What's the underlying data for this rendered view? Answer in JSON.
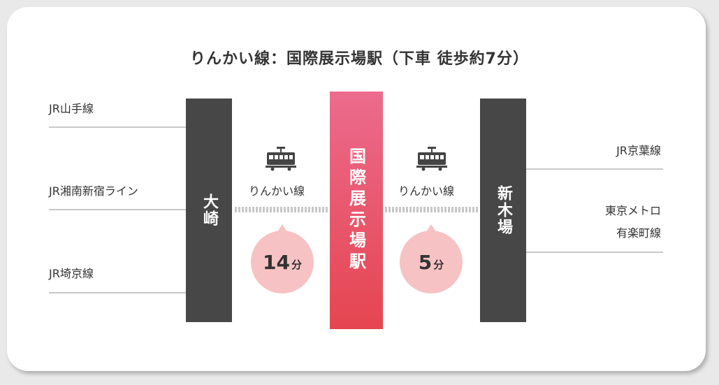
{
  "title": "りんかい線：国際展示場駅（下車 徒歩約7分）",
  "left_lines": [
    "JR山手線",
    "JR湘南新宿ライン",
    "JR埼京線"
  ],
  "right_lines": [
    "JR京葉線",
    "東京メトロ",
    "有楽町線"
  ],
  "stations": {
    "osaki": "大崎",
    "kokusai": "国際展示場駅",
    "shinkiba": "新木場"
  },
  "segments": [
    {
      "line": "りんかい線",
      "minutes": "14",
      "unit": "分"
    },
    {
      "line": "りんかい線",
      "minutes": "5",
      "unit": "分"
    }
  ],
  "colors": {
    "station_dark": "#474747",
    "center_top": "#ec6b8d",
    "center_bottom": "#e54550",
    "bubble": "#f7c2c4"
  },
  "icons": [
    "train-icon"
  ]
}
